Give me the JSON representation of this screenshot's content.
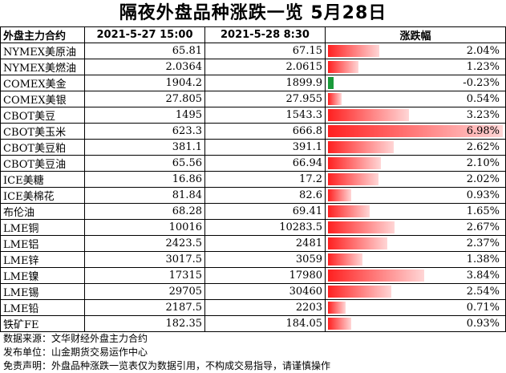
{
  "title": "隔夜外盘品种涨跌一览 5月28日",
  "headers": [
    "外盘主力合约",
    "2021-5-27 15:00",
    "2021-5-28 8:30",
    "涨跌幅"
  ],
  "chart_data": {
    "type": "table",
    "rows": [
      {
        "name": "NYMEX美原油",
        "prev": "65.81",
        "curr": "67.15",
        "change": "2.04%",
        "pct": 2.04
      },
      {
        "name": "NYMEX美燃油",
        "prev": "2.0364",
        "curr": "2.0615",
        "change": "1.23%",
        "pct": 1.23
      },
      {
        "name": "COMEX美金",
        "prev": "1904.2",
        "curr": "1899.9",
        "change": "-0.23%",
        "pct": -0.23
      },
      {
        "name": "COMEX美银",
        "prev": "27.805",
        "curr": "27.955",
        "change": "0.54%",
        "pct": 0.54
      },
      {
        "name": "CBOT美豆",
        "prev": "1495",
        "curr": "1543.3",
        "change": "3.23%",
        "pct": 3.23
      },
      {
        "name": "CBOT美玉米",
        "prev": "623.3",
        "curr": "666.8",
        "change": "6.98%",
        "pct": 6.98
      },
      {
        "name": "CBOT美豆粕",
        "prev": "381.1",
        "curr": "391.1",
        "change": "2.62%",
        "pct": 2.62
      },
      {
        "name": "CBOT美豆油",
        "prev": "65.56",
        "curr": "66.94",
        "change": "2.10%",
        "pct": 2.1
      },
      {
        "name": "ICE美糖",
        "prev": "16.86",
        "curr": "17.2",
        "change": "2.02%",
        "pct": 2.02
      },
      {
        "name": "ICE美棉花",
        "prev": "81.84",
        "curr": "82.6",
        "change": "0.93%",
        "pct": 0.93
      },
      {
        "name": "布伦油",
        "prev": "68.28",
        "curr": "69.41",
        "change": "1.65%",
        "pct": 1.65
      },
      {
        "name": "LME铜",
        "prev": "10016",
        "curr": "10283.5",
        "change": "2.67%",
        "pct": 2.67
      },
      {
        "name": "LME铝",
        "prev": "2423.5",
        "curr": "2481",
        "change": "2.37%",
        "pct": 2.37
      },
      {
        "name": "LME锌",
        "prev": "3017.5",
        "curr": "3059",
        "change": "1.38%",
        "pct": 1.38
      },
      {
        "name": "LME镍",
        "prev": "17315",
        "curr": "17980",
        "change": "3.84%",
        "pct": 3.84
      },
      {
        "name": "LME锡",
        "prev": "29705",
        "curr": "30460",
        "change": "2.54%",
        "pct": 2.54
      },
      {
        "name": "LME铅",
        "prev": "2187.5",
        "curr": "2203",
        "change": "0.71%",
        "pct": 0.71
      },
      {
        "name": "铁矿FE",
        "prev": "182.35",
        "curr": "184.05",
        "change": "0.93%",
        "pct": 0.93
      }
    ],
    "max_pct": 6.98
  },
  "footer": {
    "source": "数据来源：文华财经外盘主力合约",
    "publisher": "发布单位：山金期货交易运作中心",
    "disclaimer": "免责声明：外盘品种涨跌一览表仅为数据引用，不构成交易指导，请谨慎操作"
  },
  "colors": {
    "positive_bar": "#ff2020",
    "negative_bar": "#1a9a3a"
  }
}
